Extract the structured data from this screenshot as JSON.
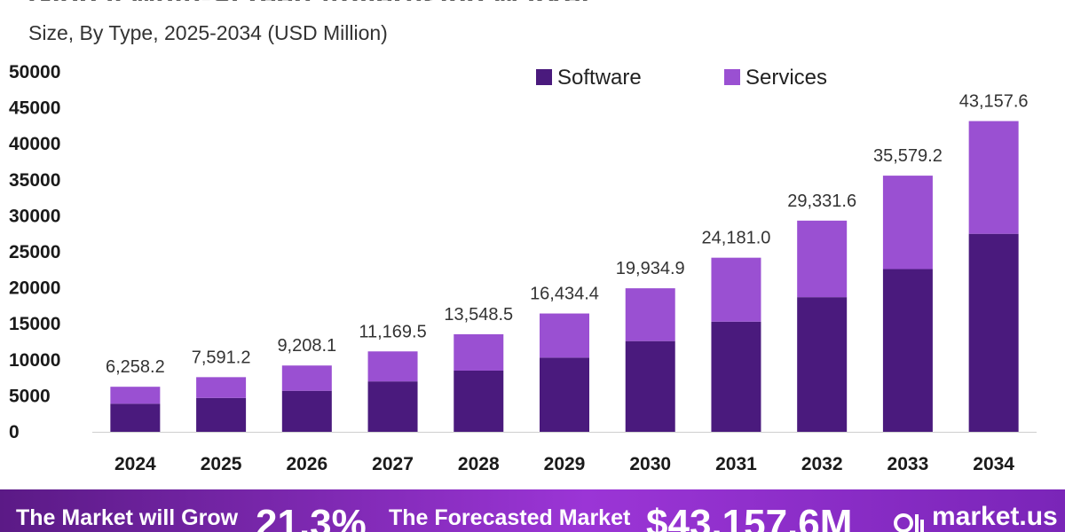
{
  "header": {
    "title": "Global Multi-Screen Advertising Market",
    "subtitle": "Size, By Type, 2025-2034 (USD Million)"
  },
  "colors": {
    "software": "#4a1a7d",
    "services": "#9a50d2"
  },
  "chart_data": {
    "type": "bar",
    "stacked": true,
    "categories": [
      "2024",
      "2025",
      "2026",
      "2027",
      "2028",
      "2029",
      "2030",
      "2031",
      "2032",
      "2033",
      "2034"
    ],
    "series": [
      {
        "name": "Software",
        "values": [
          3900,
          4700,
          5700,
          7000,
          8500,
          10300,
          12600,
          15300,
          18700,
          22600,
          27500
        ]
      },
      {
        "name": "Services",
        "values": [
          2358.2,
          2891.2,
          3508.1,
          4169.5,
          5048.5,
          6134.4,
          7334.9,
          8881.0,
          10631.6,
          12979.2,
          15657.6
        ]
      }
    ],
    "totals": [
      "6,258.2",
      "7,591.2",
      "9,208.1",
      "11,169.5",
      "13,548.5",
      "16,434.4",
      "19,934.9",
      "24,181.0",
      "29,331.6",
      "35,579.2",
      "43,157.6"
    ],
    "yticks": [
      "0",
      "5000",
      "10000",
      "15000",
      "20000",
      "25000",
      "30000",
      "35000",
      "40000",
      "45000",
      "50000"
    ],
    "ylim": [
      0,
      50000
    ],
    "legend": [
      "Software",
      "Services"
    ],
    "legend_position": "top-right"
  },
  "footer": {
    "grow_label": "The Market will Grow",
    "cagr": "21.3%",
    "forecast_label": "The Forecasted Market",
    "forecast_value": "$43,157.6M",
    "brand": "market.us"
  }
}
